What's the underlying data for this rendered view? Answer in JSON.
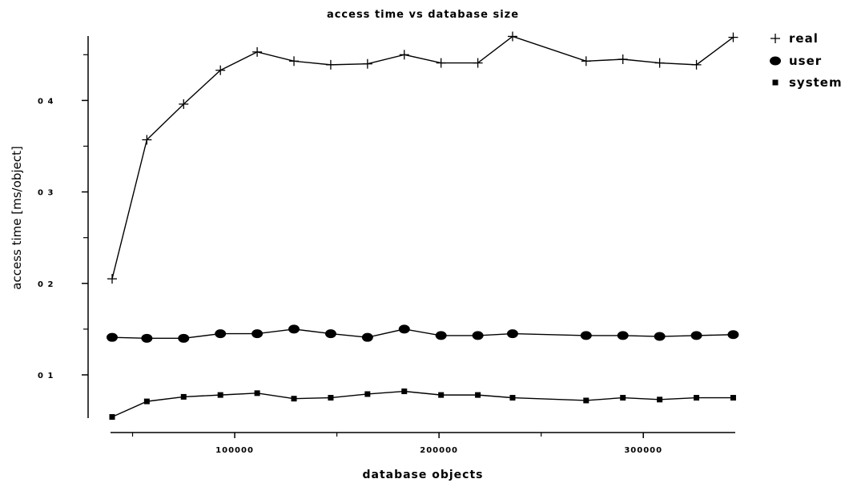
{
  "chart_data": {
    "type": "line",
    "title": "access time vs  database size",
    "xlabel": "database objects",
    "ylabel": "access time [ms/object]",
    "xlim": [
      40000,
      345000
    ],
    "ylim": [
      0.05,
      0.48
    ],
    "x_ticks": [
      {
        "value": 100000,
        "label": "100000"
      },
      {
        "value": 200000,
        "label": "200000"
      },
      {
        "value": 300000,
        "label": "300000"
      }
    ],
    "x_minor_ticks": [
      50000,
      150000,
      250000
    ],
    "y_ticks": [
      {
        "value": 0.1,
        "label": "0 1"
      },
      {
        "value": 0.2,
        "label": "0 2"
      },
      {
        "value": 0.3,
        "label": "0 3"
      },
      {
        "value": 0.4,
        "label": "0 4"
      }
    ],
    "y_minor_ticks": [
      0.15,
      0.25,
      0.35,
      0.45
    ],
    "x": [
      40000,
      57000,
      75000,
      93000,
      111000,
      129000,
      147000,
      165000,
      183000,
      201000,
      219000,
      236000,
      272000,
      290000,
      308000,
      326000,
      344000
    ],
    "series": [
      {
        "name": "real",
        "marker": "plus",
        "values": [
          0.205,
          0.357,
          0.396,
          0.433,
          0.453,
          0.443,
          0.439,
          0.44,
          0.45,
          0.441,
          0.441,
          0.47,
          0.443,
          0.445,
          0.441,
          0.439,
          0.469
        ]
      },
      {
        "name": "user",
        "marker": "circle",
        "values": [
          0.141,
          0.14,
          0.14,
          0.145,
          0.145,
          0.15,
          0.145,
          0.141,
          0.15,
          0.143,
          0.143,
          0.145,
          0.143,
          0.143,
          0.142,
          0.143,
          0.144
        ]
      },
      {
        "name": "system",
        "marker": "square",
        "values": [
          0.054,
          0.071,
          0.076,
          0.078,
          0.08,
          0.074,
          0.075,
          0.079,
          0.082,
          0.078,
          0.078,
          0.075,
          0.072,
          0.075,
          0.073,
          0.075,
          0.075
        ]
      }
    ],
    "grid": false,
    "legend_position": "top-right"
  }
}
